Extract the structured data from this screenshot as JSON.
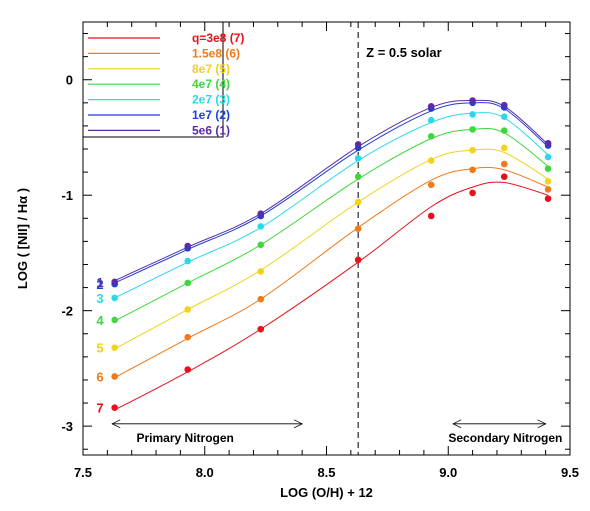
{
  "chart_data": {
    "type": "line",
    "title": "",
    "xlabel": "LOG (O/H) + 12",
    "ylabel": "LOG ( [NII] / Hα )",
    "xlim": [
      7.5,
      9.5
    ],
    "ylim": [
      -3.25,
      0.5
    ],
    "x_ticks": [
      7.5,
      8.0,
      8.5,
      9.0,
      9.5
    ],
    "x_tick_labels": [
      "7.5",
      "8.0",
      "8.5",
      "9.0",
      "9.5"
    ],
    "y_ticks": [
      0,
      -1,
      -2,
      -3
    ],
    "y_tick_labels": [
      "0",
      "-1",
      "-2",
      "-3"
    ],
    "grid": false,
    "legend_position": "top-left",
    "x": [
      7.63,
      7.93,
      8.23,
      8.63,
      8.93,
      9.1,
      9.23,
      9.41
    ],
    "series": [
      {
        "name": "q=3e8 (7)",
        "curve_label": "7",
        "color": "#e8101a",
        "values": [
          -2.84,
          -2.51,
          -2.16,
          -1.56,
          -1.18,
          -0.98,
          -0.84,
          -1.03
        ],
        "model": [
          -2.86,
          -2.53,
          -2.16,
          -1.58,
          -1.1,
          -0.93,
          -0.89,
          -1.0
        ]
      },
      {
        "name": "1.5e8 (6)",
        "curve_label": "6",
        "color": "#f07a18",
        "values": [
          -2.57,
          -2.23,
          -1.9,
          -1.29,
          -0.91,
          -0.78,
          -0.73,
          -0.95
        ],
        "model": [
          -2.58,
          -2.24,
          -1.9,
          -1.28,
          -0.87,
          -0.77,
          -0.78,
          -0.93
        ]
      },
      {
        "name": "8e7 (5)",
        "curve_label": "5",
        "color": "#f2d21a",
        "values": [
          -2.32,
          -1.99,
          -1.66,
          -1.06,
          -0.7,
          -0.61,
          -0.59,
          -0.88
        ],
        "model": [
          -2.33,
          -1.99,
          -1.65,
          -1.06,
          -0.69,
          -0.61,
          -0.63,
          -0.86
        ]
      },
      {
        "name": "4e7 (4)",
        "curve_label": "4",
        "color": "#3cd83c",
        "values": [
          -2.08,
          -1.76,
          -1.43,
          -0.84,
          -0.49,
          -0.43,
          -0.44,
          -0.77
        ],
        "model": [
          -2.09,
          -1.76,
          -1.43,
          -0.86,
          -0.51,
          -0.43,
          -0.46,
          -0.75
        ]
      },
      {
        "name": "2e7 (3)",
        "curve_label": "3",
        "color": "#2ad8e8",
        "values": [
          -1.89,
          -1.57,
          -1.27,
          -0.68,
          -0.35,
          -0.3,
          -0.32,
          -0.67
        ],
        "model": [
          -1.89,
          -1.58,
          -1.28,
          -0.7,
          -0.37,
          -0.29,
          -0.33,
          -0.65
        ]
      },
      {
        "name": "1e7 (2)",
        "curve_label": "2",
        "color": "#1f3fd8",
        "values": [
          -1.77,
          -1.46,
          -1.18,
          -0.59,
          -0.25,
          -0.2,
          -0.24,
          -0.57
        ],
        "model": [
          -1.76,
          -1.47,
          -1.18,
          -0.61,
          -0.27,
          -0.2,
          -0.25,
          -0.58
        ]
      },
      {
        "name": "5e6 (1)",
        "curve_label": "1",
        "color": "#5b2ca8",
        "values": [
          -1.75,
          -1.44,
          -1.16,
          -0.56,
          -0.23,
          -0.18,
          -0.22,
          -0.55
        ],
        "model": [
          -1.74,
          -1.45,
          -1.16,
          -0.58,
          -0.24,
          -0.18,
          -0.23,
          -0.56
        ]
      }
    ],
    "annotations": {
      "vline_x": 8.63,
      "z_label": "Z = 0.5 solar",
      "primary_label": "Primary Nitrogen",
      "primary_range": [
        7.62,
        8.4
      ],
      "primary_y": -2.98,
      "secondary_label": "Secondary Nitrogen",
      "secondary_range": [
        9.02,
        9.4
      ],
      "secondary_y": -2.98
    }
  }
}
